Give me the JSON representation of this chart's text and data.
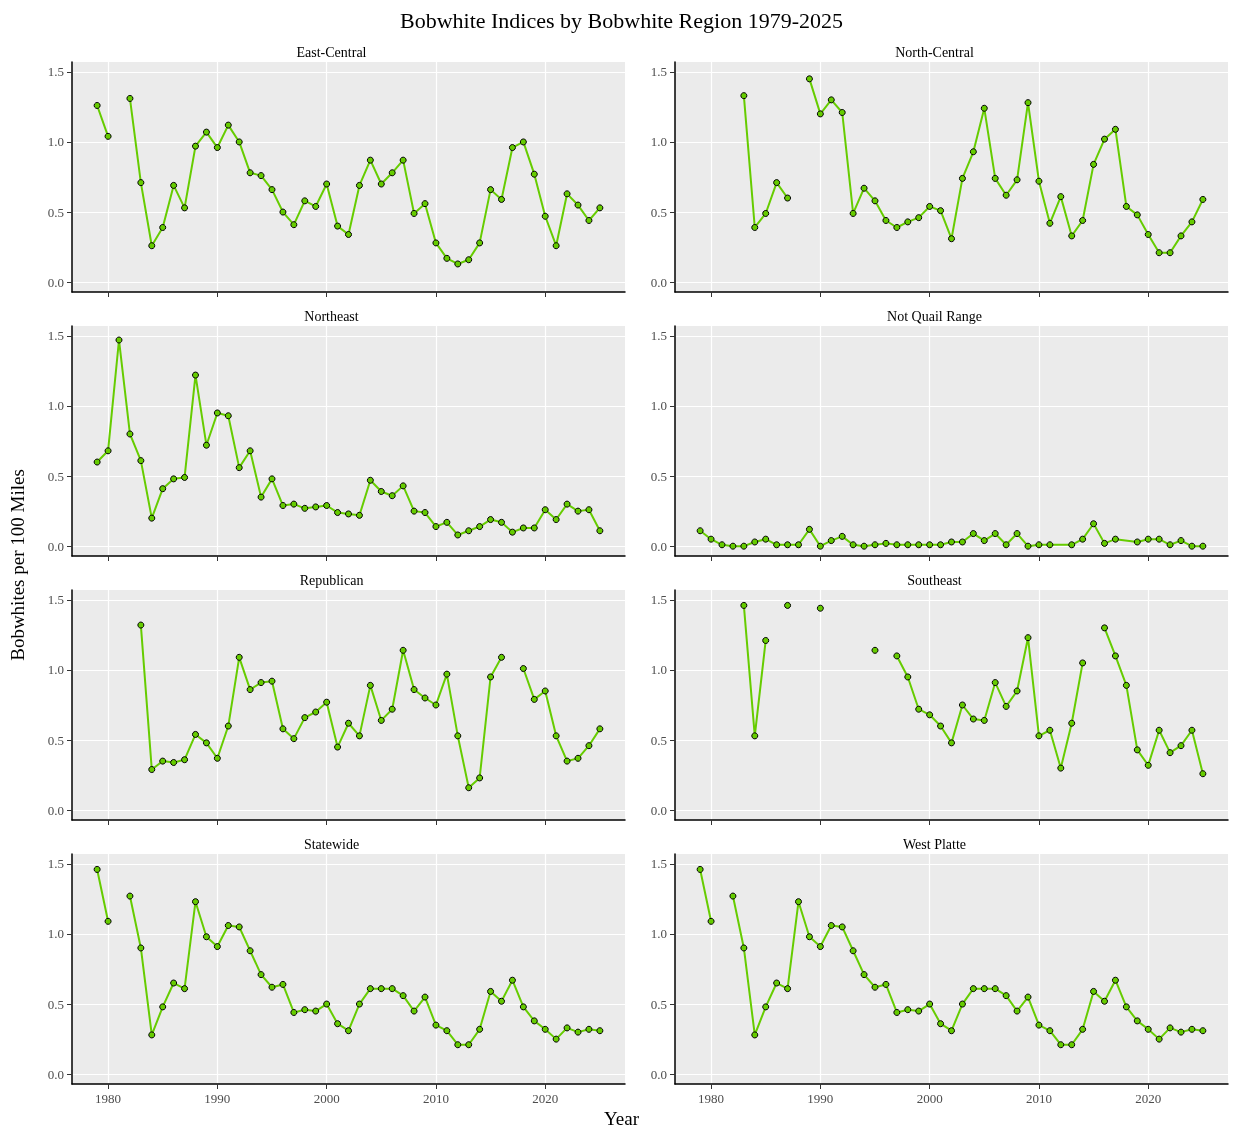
{
  "chart_data": [
    {
      "type": "line",
      "title": "East-Central",
      "annotations": [
        "Bobwhite Indices by Bobwhite Region 1979-2025"
      ],
      "tick_labels": "y",
      "marker": "circle",
      "grid": true,
      "xlim": [
        1976.7,
        2027.3
      ],
      "ylim": [
        -0.07,
        1.57
      ],
      "xticks": [
        1980,
        1990,
        2000,
        2010,
        2020
      ],
      "yticks": [
        {
          "value": 0,
          "label": "0.0"
        },
        {
          "value": 0.5,
          "label": "0.5"
        },
        {
          "value": 1,
          "label": "1.0"
        },
        {
          "value": 1.5,
          "label": "1.5"
        }
      ],
      "x": [
        1979,
        1980,
        1981,
        1982,
        1983,
        1984,
        1985,
        1986,
        1987,
        1988,
        1989,
        1990,
        1991,
        1992,
        1993,
        1994,
        1995,
        1996,
        1997,
        1998,
        1999,
        2000,
        2001,
        2002,
        2003,
        2004,
        2005,
        2006,
        2007,
        2008,
        2009,
        2010,
        2011,
        2012,
        2013,
        2014,
        2015,
        2016,
        2017,
        2018,
        2019,
        2020,
        2021,
        2022,
        2023,
        2024,
        2025
      ],
      "series": [
        {
          "color": "#66cc00",
          "values": [
            1.26,
            1.04,
            null,
            1.31,
            0.71,
            0.26,
            0.39,
            0.69,
            0.53,
            0.97,
            1.07,
            0.96,
            1.12,
            1.0,
            0.78,
            0.76,
            0.66,
            0.5,
            0.41,
            0.58,
            0.54,
            0.7,
            0.4,
            0.34,
            0.69,
            0.87,
            0.7,
            0.78,
            0.87,
            0.49,
            0.56,
            0.28,
            0.17,
            0.13,
            0.16,
            0.28,
            0.66,
            0.59,
            0.96,
            1.0,
            0.77,
            0.47,
            0.26,
            0.63,
            0.55,
            0.44,
            0.53
          ]
        }
      ]
    },
    {
      "type": "line",
      "title": "North-Central",
      "tick_labels": "y",
      "marker": "circle",
      "grid": true,
      "xlim": [
        1976.7,
        2027.3
      ],
      "ylim": [
        -0.07,
        1.57
      ],
      "xticks": [
        1980,
        1990,
        2000,
        2010,
        2020
      ],
      "yticks": [
        {
          "value": 0,
          "label": "0.0"
        },
        {
          "value": 0.5,
          "label": "0.5"
        },
        {
          "value": 1,
          "label": "1.0"
        },
        {
          "value": 1.5,
          "label": "1.5"
        }
      ],
      "x": [
        1983,
        1984,
        1985,
        1986,
        1987,
        1988,
        1989,
        1990,
        1991,
        1992,
        1993,
        1994,
        1995,
        1996,
        1997,
        1998,
        1999,
        2000,
        2001,
        2002,
        2003,
        2004,
        2005,
        2006,
        2007,
        2008,
        2009,
        2010,
        2011,
        2012,
        2013,
        2014,
        2015,
        2016,
        2017,
        2018,
        2019,
        2020,
        2021,
        2022,
        2023,
        2024,
        2025
      ],
      "series": [
        {
          "color": "#66cc00",
          "values": [
            1.33,
            0.39,
            0.49,
            0.71,
            0.6,
            null,
            1.45,
            1.2,
            1.3,
            1.21,
            0.49,
            0.67,
            0.58,
            0.44,
            0.39,
            0.43,
            0.46,
            0.54,
            0.51,
            0.31,
            0.74,
            0.93,
            1.24,
            0.74,
            0.62,
            0.73,
            1.28,
            0.72,
            0.42,
            0.61,
            0.33,
            0.44,
            0.84,
            1.02,
            1.09,
            0.54,
            0.48,
            0.34,
            0.21,
            0.21,
            0.33,
            0.43,
            0.59
          ]
        }
      ]
    },
    {
      "type": "line",
      "title": "Northeast",
      "ylabel": "Bobwhites per 100 Miles",
      "tick_labels": "y",
      "marker": "circle",
      "grid": true,
      "xlim": [
        1976.7,
        2027.3
      ],
      "ylim": [
        -0.07,
        1.57
      ],
      "xticks": [
        1980,
        1990,
        2000,
        2010,
        2020
      ],
      "yticks": [
        {
          "value": 0,
          "label": "0.0"
        },
        {
          "value": 0.5,
          "label": "0.5"
        },
        {
          "value": 1,
          "label": "1.0"
        },
        {
          "value": 1.5,
          "label": "1.5"
        }
      ],
      "x": [
        1979,
        1980,
        1981,
        1982,
        1983,
        1984,
        1985,
        1986,
        1987,
        1988,
        1989,
        1990,
        1991,
        1992,
        1993,
        1994,
        1995,
        1996,
        1997,
        1998,
        1999,
        2000,
        2001,
        2002,
        2003,
        2004,
        2005,
        2006,
        2007,
        2008,
        2009,
        2010,
        2011,
        2012,
        2013,
        2014,
        2015,
        2016,
        2017,
        2018,
        2019,
        2020,
        2021,
        2022,
        2023,
        2024,
        2025
      ],
      "series": [
        {
          "color": "#66cc00",
          "values": [
            0.6,
            0.68,
            1.47,
            0.8,
            0.61,
            0.2,
            0.41,
            0.48,
            0.49,
            1.22,
            0.72,
            0.95,
            0.93,
            0.56,
            0.68,
            0.35,
            0.48,
            0.29,
            0.3,
            0.27,
            0.28,
            0.29,
            0.24,
            0.23,
            0.22,
            0.47,
            0.39,
            0.36,
            0.43,
            0.25,
            0.24,
            0.14,
            0.17,
            0.08,
            0.11,
            0.14,
            0.19,
            0.17,
            0.1,
            0.13,
            0.13,
            0.26,
            0.19,
            0.3,
            0.25,
            0.26,
            0.11
          ]
        }
      ]
    },
    {
      "type": "line",
      "title": "Not Quail Range",
      "tick_labels": "y",
      "marker": "circle",
      "grid": true,
      "xlim": [
        1976.7,
        2027.3
      ],
      "ylim": [
        -0.07,
        1.57
      ],
      "xticks": [
        1980,
        1990,
        2000,
        2010,
        2020
      ],
      "yticks": [
        {
          "value": 0,
          "label": "0.0"
        },
        {
          "value": 0.5,
          "label": "0.5"
        },
        {
          "value": 1,
          "label": "1.0"
        },
        {
          "value": 1.5,
          "label": "1.5"
        }
      ],
      "x": [
        1979,
        1980,
        1981,
        1982,
        1983,
        1984,
        1985,
        1986,
        1987,
        1988,
        1989,
        1990,
        1991,
        1992,
        1993,
        1994,
        1995,
        1996,
        1997,
        1998,
        1999,
        2000,
        2001,
        2002,
        2003,
        2004,
        2005,
        2006,
        2007,
        2008,
        2009,
        2010,
        2011,
        2013,
        2014,
        2015,
        2016,
        2017,
        2019,
        2020,
        2021,
        2022,
        2023,
        2024,
        2025
      ],
      "series": [
        {
          "color": "#66cc00",
          "values": [
            0.11,
            0.05,
            0.01,
            0.0,
            0.0,
            0.03,
            0.05,
            0.01,
            0.01,
            0.01,
            0.12,
            0.0,
            0.04,
            0.07,
            0.01,
            0.0,
            0.01,
            0.02,
            0.01,
            0.01,
            0.01,
            0.01,
            0.01,
            0.03,
            0.03,
            0.09,
            0.04,
            0.09,
            0.01,
            0.09,
            0.0,
            0.01,
            0.01,
            0.01,
            0.05,
            0.16,
            0.02,
            0.05,
            0.03,
            0.05,
            0.05,
            0.01,
            0.04,
            0.0,
            0.0
          ]
        }
      ]
    },
    {
      "type": "line",
      "title": "Republican",
      "tick_labels": "y",
      "marker": "circle",
      "grid": true,
      "xlim": [
        1976.7,
        2027.3
      ],
      "ylim": [
        -0.07,
        1.57
      ],
      "xticks": [
        1980,
        1990,
        2000,
        2010,
        2020
      ],
      "yticks": [
        {
          "value": 0,
          "label": "0.0"
        },
        {
          "value": 0.5,
          "label": "0.5"
        },
        {
          "value": 1,
          "label": "1.0"
        },
        {
          "value": 1.5,
          "label": "1.5"
        }
      ],
      "x": [
        1983,
        1984,
        1985,
        1986,
        1987,
        1988,
        1989,
        1990,
        1991,
        1992,
        1993,
        1994,
        1995,
        1996,
        1997,
        1998,
        1999,
        2000,
        2001,
        2002,
        2003,
        2004,
        2005,
        2006,
        2007,
        2008,
        2009,
        2010,
        2011,
        2012,
        2013,
        2014,
        2015,
        2016,
        2017,
        2018,
        2019,
        2020,
        2021,
        2022,
        2023,
        2024,
        2025
      ],
      "series": [
        {
          "color": "#66cc00",
          "values": [
            1.32,
            0.29,
            0.35,
            0.34,
            0.36,
            0.54,
            0.48,
            0.37,
            0.6,
            1.09,
            0.86,
            0.91,
            0.92,
            0.58,
            0.51,
            0.66,
            0.7,
            0.77,
            0.45,
            0.62,
            0.53,
            0.89,
            0.64,
            0.72,
            1.14,
            0.86,
            0.8,
            0.75,
            0.97,
            0.53,
            0.16,
            0.23,
            0.95,
            1.09,
            null,
            1.01,
            0.79,
            0.85,
            0.53,
            0.35,
            0.37,
            0.46,
            0.58
          ]
        }
      ]
    },
    {
      "type": "line",
      "title": "Southeast",
      "tick_labels": "y",
      "marker": "circle",
      "grid": true,
      "xlim": [
        1976.7,
        2027.3
      ],
      "ylim": [
        -0.07,
        1.57
      ],
      "xticks": [
        1980,
        1990,
        2000,
        2010,
        2020
      ],
      "yticks": [
        {
          "value": 0,
          "label": "0.0"
        },
        {
          "value": 0.5,
          "label": "0.5"
        },
        {
          "value": 1,
          "label": "1.0"
        },
        {
          "value": 1.5,
          "label": "1.5"
        }
      ],
      "x": [
        1983,
        1984,
        1985,
        1986,
        1987,
        1988,
        1989,
        1990,
        1991,
        1992,
        1993,
        1994,
        1995,
        1996,
        1997,
        1998,
        1999,
        2000,
        2001,
        2002,
        2003,
        2004,
        2005,
        2006,
        2007,
        2008,
        2009,
        2010,
        2011,
        2012,
        2013,
        2014,
        2015,
        2016,
        2017,
        2018,
        2019,
        2020,
        2021,
        2022,
        2023,
        2024,
        2025
      ],
      "series": [
        {
          "color": "#66cc00",
          "values": [
            1.46,
            0.53,
            1.21,
            null,
            1.46,
            null,
            null,
            1.44,
            null,
            null,
            null,
            null,
            1.14,
            null,
            1.1,
            0.95,
            0.72,
            0.68,
            0.6,
            0.48,
            0.75,
            0.65,
            0.64,
            0.91,
            0.74,
            0.85,
            1.23,
            0.53,
            0.57,
            0.3,
            0.62,
            1.05,
            null,
            1.3,
            1.1,
            0.89,
            0.43,
            0.32,
            0.57,
            0.41,
            0.46,
            0.57,
            0.26
          ]
        }
      ]
    },
    {
      "type": "line",
      "title": "Statewide",
      "xlabel": "Year",
      "marker": "circle",
      "grid": true,
      "xlim": [
        1976.7,
        2027.3
      ],
      "ylim": [
        -0.07,
        1.57
      ],
      "xticks": [
        1980,
        1990,
        2000,
        2010,
        2020
      ],
      "yticks": [
        {
          "value": 0,
          "label": "0.0"
        },
        {
          "value": 0.5,
          "label": "0.5"
        },
        {
          "value": 1,
          "label": "1.0"
        },
        {
          "value": 1.5,
          "label": "1.5"
        }
      ],
      "x": [
        1979,
        1980,
        1981,
        1982,
        1983,
        1984,
        1985,
        1986,
        1987,
        1988,
        1989,
        1990,
        1991,
        1992,
        1993,
        1994,
        1995,
        1996,
        1997,
        1998,
        1999,
        2000,
        2001,
        2002,
        2003,
        2004,
        2005,
        2006,
        2007,
        2008,
        2009,
        2010,
        2011,
        2012,
        2013,
        2014,
        2015,
        2016,
        2017,
        2018,
        2019,
        2020,
        2021,
        2022,
        2023,
        2024,
        2025
      ],
      "series": [
        {
          "color": "#66cc00",
          "values": [
            1.46,
            1.09,
            null,
            1.27,
            0.9,
            0.28,
            0.48,
            0.65,
            0.61,
            1.23,
            0.98,
            0.91,
            1.06,
            1.05,
            0.88,
            0.71,
            0.62,
            0.64,
            0.44,
            0.46,
            0.45,
            0.5,
            0.36,
            0.31,
            0.5,
            0.61,
            0.61,
            0.61,
            0.56,
            0.45,
            0.55,
            0.35,
            0.31,
            0.21,
            0.21,
            0.32,
            0.59,
            0.52,
            0.67,
            0.48,
            0.38,
            0.32,
            0.25,
            0.33,
            0.3,
            0.32,
            0.31
          ]
        }
      ]
    },
    {
      "type": "line",
      "title": "West Platte",
      "marker": "circle",
      "grid": true,
      "xlim": [
        1976.7,
        2027.3
      ],
      "ylim": [
        -0.07,
        1.57
      ],
      "xticks": [
        1980,
        1990,
        2000,
        2010,
        2020
      ],
      "yticks": [
        {
          "value": 0,
          "label": "0.0"
        },
        {
          "value": 0.5,
          "label": "0.5"
        },
        {
          "value": 1,
          "label": "1.0"
        },
        {
          "value": 1.5,
          "label": "1.5"
        }
      ],
      "x": [
        1979,
        1980,
        1981,
        1982,
        1983,
        1984,
        1985,
        1986,
        1987,
        1988,
        1989,
        1990,
        1991,
        1992,
        1993,
        1994,
        1995,
        1996,
        1997,
        1998,
        1999,
        2000,
        2001,
        2002,
        2003,
        2004,
        2005,
        2006,
        2007,
        2008,
        2009,
        2010,
        2011,
        2012,
        2013,
        2014,
        2015,
        2016,
        2017,
        2018,
        2019,
        2020,
        2021,
        2022,
        2023,
        2024,
        2025
      ],
      "series": [
        {
          "color": "#66cc00",
          "values": [
            1.46,
            1.09,
            null,
            1.27,
            0.9,
            0.28,
            0.48,
            0.65,
            0.61,
            1.23,
            0.98,
            0.91,
            1.06,
            1.05,
            0.88,
            0.71,
            0.62,
            0.64,
            0.44,
            0.46,
            0.45,
            0.5,
            0.36,
            0.31,
            0.5,
            0.61,
            0.61,
            0.61,
            0.56,
            0.45,
            0.55,
            0.35,
            0.31,
            0.21,
            0.21,
            0.32,
            0.59,
            0.52,
            0.67,
            0.48,
            0.38,
            0.32,
            0.25,
            0.33,
            0.3,
            0.32,
            0.31
          ]
        }
      ]
    }
  ]
}
